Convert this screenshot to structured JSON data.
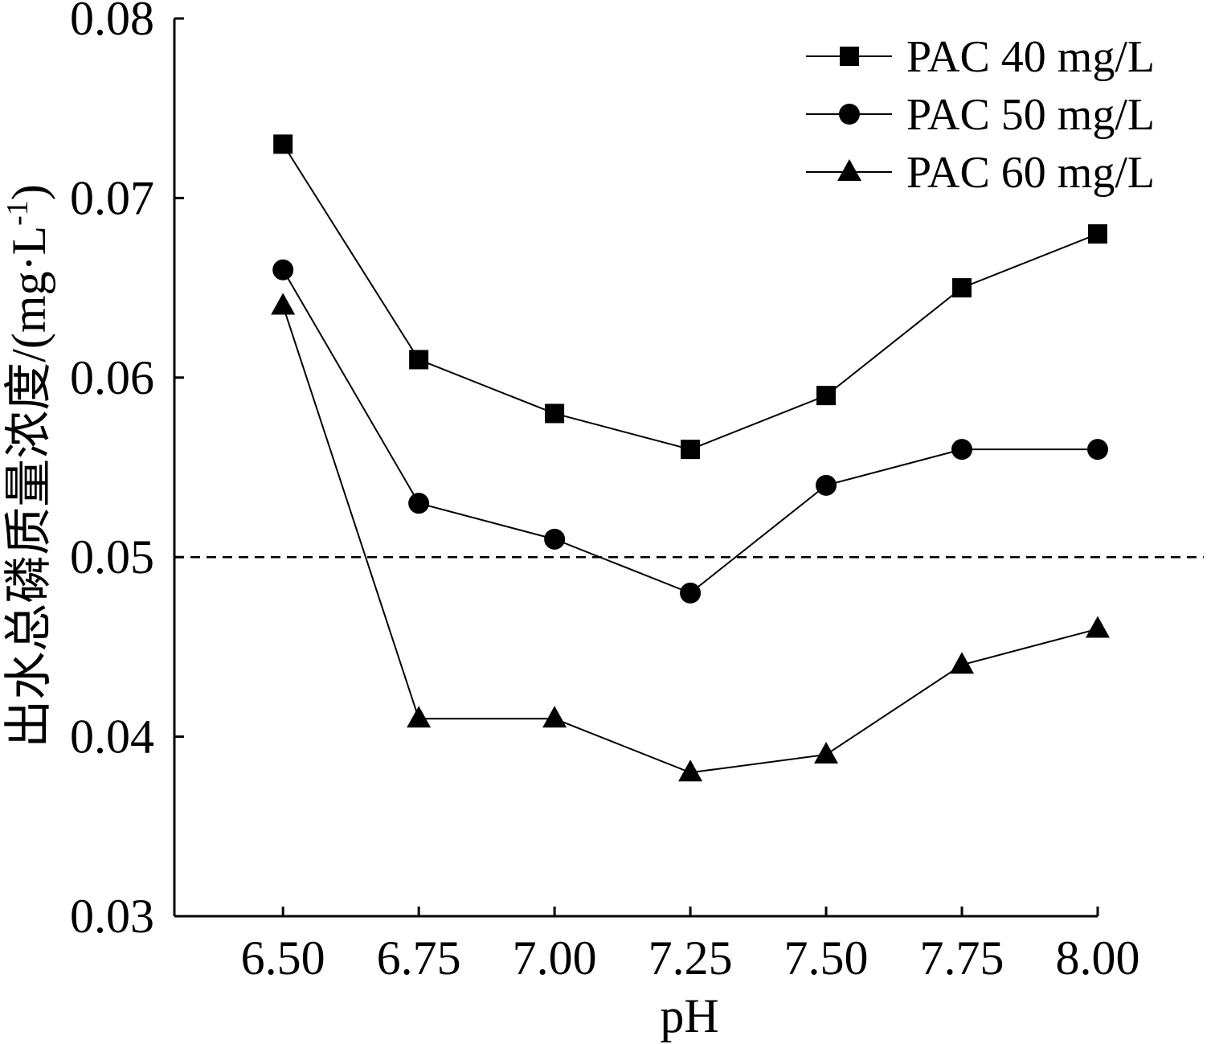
{
  "chart_data": {
    "type": "line",
    "xlabel": "pH",
    "ylabel": "出水总磷质量浓度/(mg·L-1)",
    "ylabel_parts": {
      "main": "出水总磷质量浓度/(mg·L",
      "sup": "-1",
      "close": ")"
    },
    "x": [
      6.5,
      6.75,
      7.0,
      7.25,
      7.5,
      7.75,
      8.0
    ],
    "x_tick_labels": [
      "6.50",
      "6.75",
      "7.00",
      "7.25",
      "7.50",
      "7.75",
      "8.00"
    ],
    "y_ticks": [
      0.03,
      0.04,
      0.05,
      0.06,
      0.07,
      0.08
    ],
    "y_tick_labels": [
      "0.03",
      "0.04",
      "0.05",
      "0.06",
      "0.07",
      "0.08"
    ],
    "xlim": [
      6.3,
      8.0
    ],
    "ylim": [
      0.03,
      0.08
    ],
    "grid": false,
    "legend_position": "top-right",
    "reference_line": {
      "y": 0.05,
      "style": "dashed"
    },
    "series": [
      {
        "name": "PAC 40 mg/L",
        "marker": "square",
        "values": [
          0.073,
          0.061,
          0.058,
          0.056,
          0.059,
          0.065,
          0.068
        ]
      },
      {
        "name": "PAC 50 mg/L",
        "marker": "circle",
        "values": [
          0.066,
          0.053,
          0.051,
          0.048,
          0.054,
          0.056,
          0.056
        ]
      },
      {
        "name": "PAC 60 mg/L",
        "marker": "triangle",
        "values": [
          0.064,
          0.041,
          0.041,
          0.038,
          0.039,
          0.044,
          0.046
        ]
      }
    ],
    "colors": {
      "line": "#000000",
      "marker": "#000000"
    }
  }
}
